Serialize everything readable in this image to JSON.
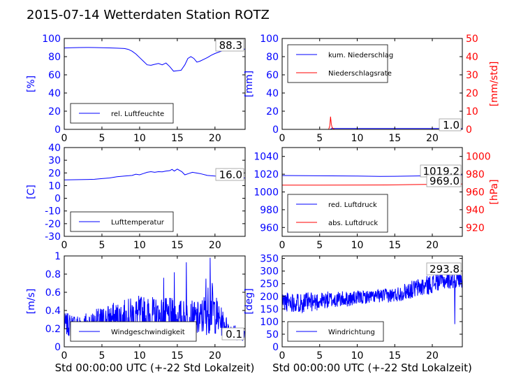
{
  "title": "2015-07-14 Wetterdaten Station ROTZ",
  "colors": {
    "blue": "#0000ff",
    "red": "#ff0000",
    "black": "#000000"
  },
  "chart_data": [
    {
      "id": "humidity",
      "type": "line",
      "ylabel": "[%]",
      "xlim": [
        0,
        24
      ],
      "ylim": [
        0,
        100
      ],
      "xticks": [
        0,
        5,
        10,
        15,
        20
      ],
      "yticks": [
        0,
        20,
        40,
        60,
        80,
        100
      ],
      "current_value": "88.3",
      "series": [
        {
          "name": "rel. Luftfeuchte",
          "color": "#0000ff",
          "points": [
            [
              0,
              89.5
            ],
            [
              1,
              89.8
            ],
            [
              2,
              90
            ],
            [
              3,
              90.1
            ],
            [
              4,
              90
            ],
            [
              5,
              89.8
            ],
            [
              6,
              89.6
            ],
            [
              7,
              89.3
            ],
            [
              8,
              88.9
            ],
            [
              8.5,
              88
            ],
            [
              9,
              86
            ],
            [
              9.5,
              83
            ],
            [
              10,
              79
            ],
            [
              10.5,
              75
            ],
            [
              11,
              71
            ],
            [
              11.5,
              70.5
            ],
            [
              12,
              71.5
            ],
            [
              12.5,
              72.5
            ],
            [
              13,
              71
            ],
            [
              13.5,
              73
            ],
            [
              14,
              69
            ],
            [
              14.5,
              64
            ],
            [
              15,
              64.5
            ],
            [
              15.5,
              65
            ],
            [
              16,
              71
            ],
            [
              16.4,
              78
            ],
            [
              16.8,
              80
            ],
            [
              17.2,
              78
            ],
            [
              17.6,
              74
            ],
            [
              18,
              75
            ],
            [
              18.5,
              77
            ],
            [
              19,
              79
            ],
            [
              19.5,
              81.5
            ],
            [
              20,
              83.5
            ],
            [
              20.5,
              85
            ],
            [
              21,
              86.5
            ],
            [
              22,
              87.5
            ],
            [
              23,
              88.1
            ],
            [
              24,
              88.3
            ]
          ]
        }
      ]
    },
    {
      "id": "precipitation",
      "type": "line",
      "ylabel": "[mm]",
      "ylabel_right": "[mm/std]",
      "xlim": [
        0,
        24
      ],
      "ylim": [
        0,
        100
      ],
      "ylim_right": [
        0,
        50
      ],
      "xticks": [
        0,
        5,
        10,
        15,
        20
      ],
      "yticks": [
        0,
        20,
        40,
        60,
        80,
        100
      ],
      "yticks_right": [
        0,
        10,
        20,
        30,
        40,
        50
      ],
      "current_value": "1.0",
      "series": [
        {
          "name": "kum. Niederschlag",
          "color": "#0000ff",
          "axis": "left",
          "points": [
            [
              0,
              0
            ],
            [
              6.4,
              0
            ],
            [
              6.6,
              1
            ],
            [
              24,
              1
            ]
          ]
        },
        {
          "name": "Niederschlagsrate",
          "color": "#ff0000",
          "axis": "right",
          "points": [
            [
              0,
              0
            ],
            [
              6.2,
              0
            ],
            [
              6.35,
              2
            ],
            [
              6.45,
              7
            ],
            [
              6.55,
              3
            ],
            [
              6.65,
              1
            ],
            [
              6.8,
              0.5
            ],
            [
              7.0,
              0
            ],
            [
              24,
              0
            ]
          ]
        }
      ]
    },
    {
      "id": "temperature",
      "type": "line",
      "ylabel": "[C]",
      "xlim": [
        0,
        24
      ],
      "ylim": [
        -30,
        40
      ],
      "xticks": [
        0,
        5,
        10,
        15,
        20
      ],
      "yticks": [
        -30,
        -20,
        -10,
        0,
        10,
        20,
        30,
        40
      ],
      "current_value": "16.0",
      "series": [
        {
          "name": "Lufttemperatur",
          "color": "#0000ff",
          "points": [
            [
              0,
              14.5
            ],
            [
              2,
              14.7
            ],
            [
              4,
              15
            ],
            [
              5,
              15.5
            ],
            [
              6,
              16
            ],
            [
              7,
              17
            ],
            [
              8,
              17.5
            ],
            [
              9,
              18
            ],
            [
              9.5,
              19
            ],
            [
              10,
              18.5
            ],
            [
              10.5,
              19.5
            ],
            [
              11,
              20.5
            ],
            [
              11.5,
              21
            ],
            [
              12,
              20.5
            ],
            [
              12.5,
              21
            ],
            [
              13,
              20.8
            ],
            [
              13.5,
              21.5
            ],
            [
              14,
              21.8
            ],
            [
              14.3,
              22.8
            ],
            [
              14.6,
              21.5
            ],
            [
              15,
              23
            ],
            [
              15.3,
              22
            ],
            [
              15.6,
              21
            ],
            [
              16,
              18.5
            ],
            [
              16.5,
              19.5
            ],
            [
              17,
              20.5
            ],
            [
              18,
              19.5
            ],
            [
              19,
              18
            ],
            [
              20,
              17.5
            ],
            [
              21,
              17
            ],
            [
              22,
              16.5
            ],
            [
              23,
              16.2
            ],
            [
              24,
              16
            ]
          ]
        }
      ]
    },
    {
      "id": "pressure",
      "type": "line",
      "ylabel_right": "[hPa]",
      "xlim": [
        0,
        24
      ],
      "ylim": [
        950,
        1050
      ],
      "ylim_right": [
        910,
        1010
      ],
      "xticks": [
        0,
        5,
        10,
        15,
        20
      ],
      "yticks": [
        960,
        980,
        1000,
        1020,
        1040
      ],
      "yticks_right": [
        920,
        940,
        960,
        980,
        1000
      ],
      "current_values": [
        "1019.2",
        "969.0"
      ],
      "series": [
        {
          "name": "red. Luftdruck",
          "color": "#0000ff",
          "axis": "left",
          "points": [
            [
              0,
              1018.5
            ],
            [
              5,
              1018.2
            ],
            [
              10,
              1017.9
            ],
            [
              13,
              1017.5
            ],
            [
              15,
              1017.6
            ],
            [
              18,
              1018
            ],
            [
              21,
              1018.6
            ],
            [
              24,
              1019.2
            ]
          ]
        },
        {
          "name": "abs. Luftdruck",
          "color": "#ff0000",
          "axis": "right",
          "points": [
            [
              0,
              967.6
            ],
            [
              5,
              967.7
            ],
            [
              10,
              967.8
            ],
            [
              14,
              967.9
            ],
            [
              17,
              968.3
            ],
            [
              20,
              968.6
            ],
            [
              24,
              969.0
            ]
          ]
        }
      ]
    },
    {
      "id": "windspeed",
      "type": "line",
      "ylabel": "[m/s]",
      "xlabel": "Std 00:00:00 UTC (+-22 Std Lokalzeit)",
      "xlim": [
        0,
        24
      ],
      "ylim": [
        0,
        1.0
      ],
      "xticks": [
        0,
        5,
        10,
        15,
        20
      ],
      "yticks": [
        0,
        0.2,
        0.4,
        0.6,
        0.8,
        1.0
      ],
      "current_value": "0.1",
      "noise": {
        "seed": 7,
        "step_hours": 0.04
      },
      "series": [
        {
          "name": "Windgeschwindigkeit",
          "color": "#0000ff",
          "profile": [
            [
              0,
              0.25,
              0.12
            ],
            [
              2,
              0.22,
              0.15
            ],
            [
              4,
              0.25,
              0.16
            ],
            [
              6,
              0.3,
              0.18
            ],
            [
              8,
              0.32,
              0.2
            ],
            [
              10,
              0.35,
              0.22
            ],
            [
              12,
              0.33,
              0.22
            ],
            [
              14,
              0.32,
              0.22
            ],
            [
              16,
              0.3,
              0.22
            ],
            [
              18,
              0.3,
              0.2
            ],
            [
              19.5,
              0.45,
              0.3
            ],
            [
              20.5,
              0.3,
              0.18
            ],
            [
              22,
              0.18,
              0.1
            ],
            [
              24,
              0.12,
              0.06
            ]
          ],
          "peaks": [
            [
              19.35,
              0.98
            ],
            [
              16.2,
              0.93
            ],
            [
              14.6,
              0.82
            ],
            [
              18.8,
              0.75
            ],
            [
              13.2,
              0.76
            ]
          ]
        }
      ]
    },
    {
      "id": "winddirection",
      "type": "line",
      "ylabel": "[deg]",
      "xlabel": "Std 00:00:00 UTC (+-22 Std Lokalzeit)",
      "xlim": [
        0,
        24
      ],
      "ylim": [
        0,
        360
      ],
      "xticks": [
        0,
        5,
        10,
        15,
        20
      ],
      "yticks": [
        0,
        50,
        100,
        150,
        200,
        250,
        300,
        350
      ],
      "current_value": "293.8",
      "noise": {
        "seed": 11,
        "step_hours": 0.04
      },
      "series": [
        {
          "name": "Windrichtung",
          "color": "#0000ff",
          "profile": [
            [
              0,
              180,
              40
            ],
            [
              3,
              175,
              40
            ],
            [
              6,
              185,
              35
            ],
            [
              9,
              190,
              30
            ],
            [
              12,
              200,
              25
            ],
            [
              15,
              205,
              30
            ],
            [
              17,
              225,
              35
            ],
            [
              19,
              240,
              40
            ],
            [
              21,
              260,
              35
            ],
            [
              24,
              270,
              35
            ]
          ],
          "peaks": [
            [
              23,
              90
            ],
            [
              20.5,
              310
            ]
          ]
        }
      ]
    }
  ]
}
